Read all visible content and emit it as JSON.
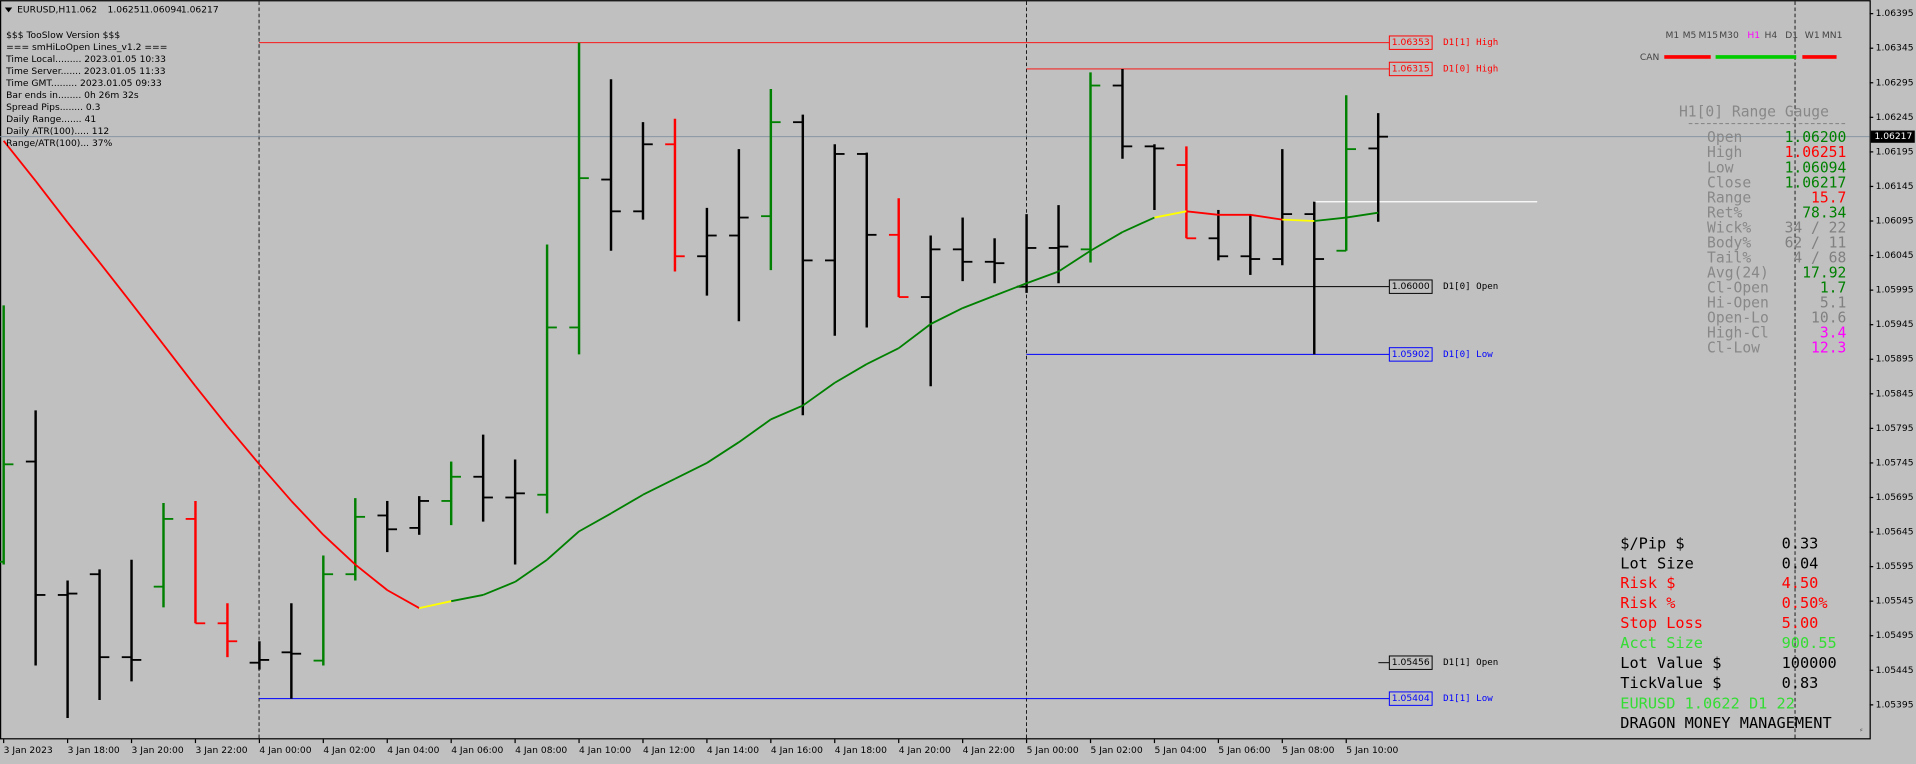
{
  "chart_data": {
    "type": "ohlc",
    "title": "EURUSD,H1",
    "categories": [
      "3 Jan 2023",
      null,
      "3 Jan 18:00",
      null,
      "3 Jan 20:00",
      null,
      "3 Jan 22:00",
      null,
      "4 Jan 00:00",
      null,
      "4 Jan 02:00",
      null,
      "4 Jan 04:00",
      null,
      "4 Jan 06:00",
      null,
      "4 Jan 08:00",
      null,
      "4 Jan 10:00",
      null,
      "4 Jan 12:00",
      null,
      "4 Jan 14:00",
      null,
      "4 Jan 16:00",
      null,
      "4 Jan 18:00",
      null,
      "4 Jan 20:00",
      null,
      "4 Jan 22:00",
      null,
      "5 Jan 00:00",
      null,
      "5 Jan 02:00",
      null,
      "5 Jan 04:00",
      null,
      "5 Jan 06:00",
      null,
      "5 Jan 08:00",
      null,
      "5 Jan 10:00",
      null
    ],
    "open": [
      1.05602,
      1.05747,
      1.05554,
      1.05584,
      1.05464,
      1.05566,
      1.05664,
      1.05513,
      1.05456,
      1.05471,
      1.05459,
      1.05584,
      1.05669,
      1.05651,
      1.0569,
      1.05725,
      1.05695,
      1.05699,
      1.05941,
      1.06155,
      1.06109,
      1.06206,
      1.06044,
      1.06074,
      1.06102,
      1.06238,
      1.06038,
      1.06192,
      1.06075,
      1.05985,
      1.06054,
      1.06036,
      1.06,
      1.06056,
      1.06054,
      1.06291,
      1.06203,
      1.06176,
      1.0607,
      1.06044,
      1.0604,
      1.06105,
      1.06052,
      1.062
    ],
    "high": [
      1.05973,
      1.05821,
      1.05575,
      1.05591,
      1.05605,
      1.05687,
      1.0569,
      1.05542,
      1.05487,
      1.05542,
      1.05611,
      1.05694,
      1.0569,
      1.05697,
      1.05747,
      1.05786,
      1.0575,
      1.06061,
      1.06353,
      1.063,
      1.06238,
      1.06243,
      1.06114,
      1.06199,
      1.06286,
      1.06249,
      1.06206,
      1.06194,
      1.06128,
      1.06074,
      1.061,
      1.0607,
      1.06105,
      1.06118,
      1.0631,
      1.06315,
      1.06206,
      1.06203,
      1.06111,
      1.06105,
      1.06199,
      1.06123,
      1.06277,
      1.06251
    ],
    "low": [
      1.05598,
      1.05452,
      1.05376,
      1.05402,
      1.05429,
      1.05536,
      1.05513,
      1.05464,
      1.05446,
      1.05404,
      1.05452,
      1.05575,
      1.05616,
      1.05641,
      1.05655,
      1.0566,
      1.05598,
      1.05672,
      1.05902,
      1.06052,
      1.06097,
      1.06022,
      1.05987,
      1.0595,
      1.06024,
      1.05814,
      1.05929,
      1.05941,
      1.05985,
      1.05856,
      1.06008,
      1.06005,
      1.05991,
      1.06005,
      1.06035,
      1.06185,
      1.06111,
      1.0607,
      1.06038,
      1.06017,
      1.06031,
      1.05902,
      1.06052,
      1.06094
    ],
    "close": [
      1.05743,
      1.05554,
      1.05556,
      1.05464,
      1.0546,
      1.05664,
      1.05513,
      1.05487,
      1.0546,
      1.05469,
      1.05584,
      1.05667,
      1.05649,
      1.0569,
      1.05725,
      1.05695,
      1.05701,
      1.05941,
      1.06157,
      1.06109,
      1.06206,
      1.06044,
      1.06074,
      1.061,
      1.06238,
      1.06038,
      1.06192,
      1.06075,
      1.05985,
      1.06054,
      1.06036,
      1.06034,
      1.06056,
      1.06058,
      1.06291,
      1.06203,
      1.062,
      1.0607,
      1.06044,
      1.0604,
      1.06105,
      1.0604,
      1.06199,
      1.06217
    ],
    "bar_colors": [
      "#008000",
      "#000000",
      "#000000",
      "#000000",
      "#000000",
      "#008000",
      "#ff0000",
      "#ff0000",
      "#000000",
      "#000000",
      "#008000",
      "#008000",
      "#000000",
      "#000000",
      "#008000",
      "#000000",
      "#000000",
      "#008000",
      "#008000",
      "#000000",
      "#000000",
      "#ff0000",
      "#000000",
      "#000000",
      "#008000",
      "#000000",
      "#000000",
      "#000000",
      "#ff0000",
      "#000000",
      "#000000",
      "#000000",
      "#000000",
      "#000000",
      "#008000",
      "#000000",
      "#000000",
      "#ff0000",
      "#000000",
      "#000000",
      "#000000",
      "#000000",
      "#008000",
      "#000000"
    ],
    "ma": {
      "values": [
        1.06211,
        1.06153,
        1.06093,
        1.06035,
        1.05976,
        1.05916,
        1.05856,
        1.05798,
        1.05743,
        1.0569,
        1.05641,
        1.05598,
        1.05561,
        1.05535,
        1.05545,
        1.05554,
        1.05573,
        1.05605,
        1.05646,
        1.05672,
        1.05699,
        1.05722,
        1.05745,
        1.05775,
        1.05808,
        1.05828,
        1.05861,
        1.05888,
        1.05911,
        1.05946,
        1.05969,
        1.05987,
        1.06005,
        1.06022,
        1.06052,
        1.06079,
        1.061,
        1.06109,
        1.06104,
        1.06104,
        1.06097,
        1.06095,
        1.061,
        1.06107
      ],
      "colors": [
        "#ff0000",
        "#ff0000",
        "#ff0000",
        "#ff0000",
        "#ff0000",
        "#ff0000",
        "#ff0000",
        "#ff0000",
        "#ff0000",
        "#ff0000",
        "#ff0000",
        "#ff0000",
        "#ff0000",
        "#ff0000",
        "#ffff00",
        "#008000",
        "#008000",
        "#008000",
        "#008000",
        "#008000",
        "#008000",
        "#008000",
        "#008000",
        "#008000",
        "#008000",
        "#008000",
        "#008000",
        "#008000",
        "#008000",
        "#008000",
        "#008000",
        "#008000",
        "#008000",
        "#008000",
        "#008000",
        "#008000",
        "#008000",
        "#ffff00",
        "#ff0000",
        "#ff0000",
        "#ff0000",
        "#ffff00",
        "#008000",
        "#008000"
      ]
    },
    "levels": [
      {
        "name": "D1[1] High",
        "value": 1.06353,
        "color": "#ff0000"
      },
      {
        "name": "D1[0] High",
        "value": 1.06315,
        "color": "#ff0000"
      },
      {
        "name": "D1[0] Open",
        "value": 1.06,
        "value_label": "1.06000",
        "color": "#000000"
      },
      {
        "name": "D1[0] Low",
        "value": 1.05902,
        "color": "#0000ff"
      },
      {
        "name": "D1[1] Open",
        "value": 1.05456,
        "color": "#000000"
      },
      {
        "name": "D1[1] Low",
        "value": 1.05404,
        "color": "#0000ff"
      }
    ],
    "ylim": [
      1.05345,
      1.06411
    ],
    "yticks": [
      1.05395,
      1.05445,
      1.05495,
      1.05545,
      1.05595,
      1.05645,
      1.05695,
      1.05745,
      1.05795,
      1.05845,
      1.05895,
      1.05945,
      1.05995,
      1.06045,
      1.06095,
      1.06145,
      1.06195,
      1.06245,
      1.06295,
      1.06345,
      1.06395
    ],
    "grid": false
  },
  "info_panel": {
    "lines": [
      "$$$ TooSlow Version $$$",
      "=== smHiLoOpen Lines_v1.2 ===",
      "Time Local......... 2023.01.05 10:33",
      "Time Server....... 2023.01.05 11:33",
      "Time GMT......... 2023.01.05 09:33",
      "Bar ends in........ 0h 26m 32s",
      "Spread Pips........ 0.3",
      "Daily Range....... 41",
      "Daily ATR(100)..... 112",
      "Range/ATR(100)... 37%"
    ]
  },
  "timeframes": {
    "items": [
      "M1",
      "M5",
      "M15",
      "M30",
      "H1",
      "H4",
      "D1",
      "W1",
      "MN1"
    ],
    "active": "H1",
    "label": "CAN"
  },
  "range_gauge": {
    "title": "H1[0] Range Gauge",
    "rows": [
      {
        "label": "Open",
        "value": "1.06200",
        "color": "#008000"
      },
      {
        "label": "High",
        "value": "1.06251",
        "color": "#ff0000"
      },
      {
        "label": "Low",
        "value": "1.06094",
        "color": "#008000"
      },
      {
        "label": "Close",
        "value": "1.06217",
        "color": "#008000"
      },
      {
        "label": "Range",
        "value": "15.7",
        "color": "#ff0000"
      },
      {
        "label": "Ret%",
        "value": "78.34",
        "color": "#008000"
      },
      {
        "label": "Wick%",
        "value": "34 / 22",
        "color": "#808080"
      },
      {
        "label": "Body%",
        "value": "62 / 11",
        "color": "#808080"
      },
      {
        "label": "Tail%",
        "value": "4 / 68",
        "color": "#808080"
      },
      {
        "label": "Avg(24)",
        "value": "17.92",
        "color": "#008000"
      },
      {
        "label": "Cl-Open",
        "value": "1.7",
        "color": "#008000"
      },
      {
        "label": "Hi-Open",
        "value": "5.1",
        "color": "#808080"
      },
      {
        "label": "Open-Lo",
        "value": "10.6",
        "color": "#808080"
      },
      {
        "label": "High-Cl",
        "value": "3.4",
        "color": "#ff00ff"
      },
      {
        "label": "Cl-Low",
        "value": "12.3",
        "color": "#ff00ff"
      }
    ]
  },
  "money_management": {
    "rows": [
      {
        "label": "$/Pip $",
        "value": "0.33",
        "color": "#000000"
      },
      {
        "label": "Lot Size",
        "value": "0.04",
        "color": "#000000"
      },
      {
        "label": "Risk $",
        "value": "4.50",
        "color": "#ff0000"
      },
      {
        "label": "Risk %",
        "value": "0.50%",
        "color": "#ff0000"
      },
      {
        "label": "Stop Loss",
        "value": "5.00",
        "color": "#ff0000"
      },
      {
        "label": "Acct Size",
        "value": "900.55",
        "color": "#33dd33"
      },
      {
        "label": "Lot Value $",
        "value": "100000",
        "color": "#000000"
      },
      {
        "label": "TickValue $",
        "value": "0.83",
        "color": "#000000"
      }
    ],
    "symbol_line": "EURUSD 1.0622 D1 22",
    "footer": "DRAGON MONEY MANAGEMENT"
  }
}
